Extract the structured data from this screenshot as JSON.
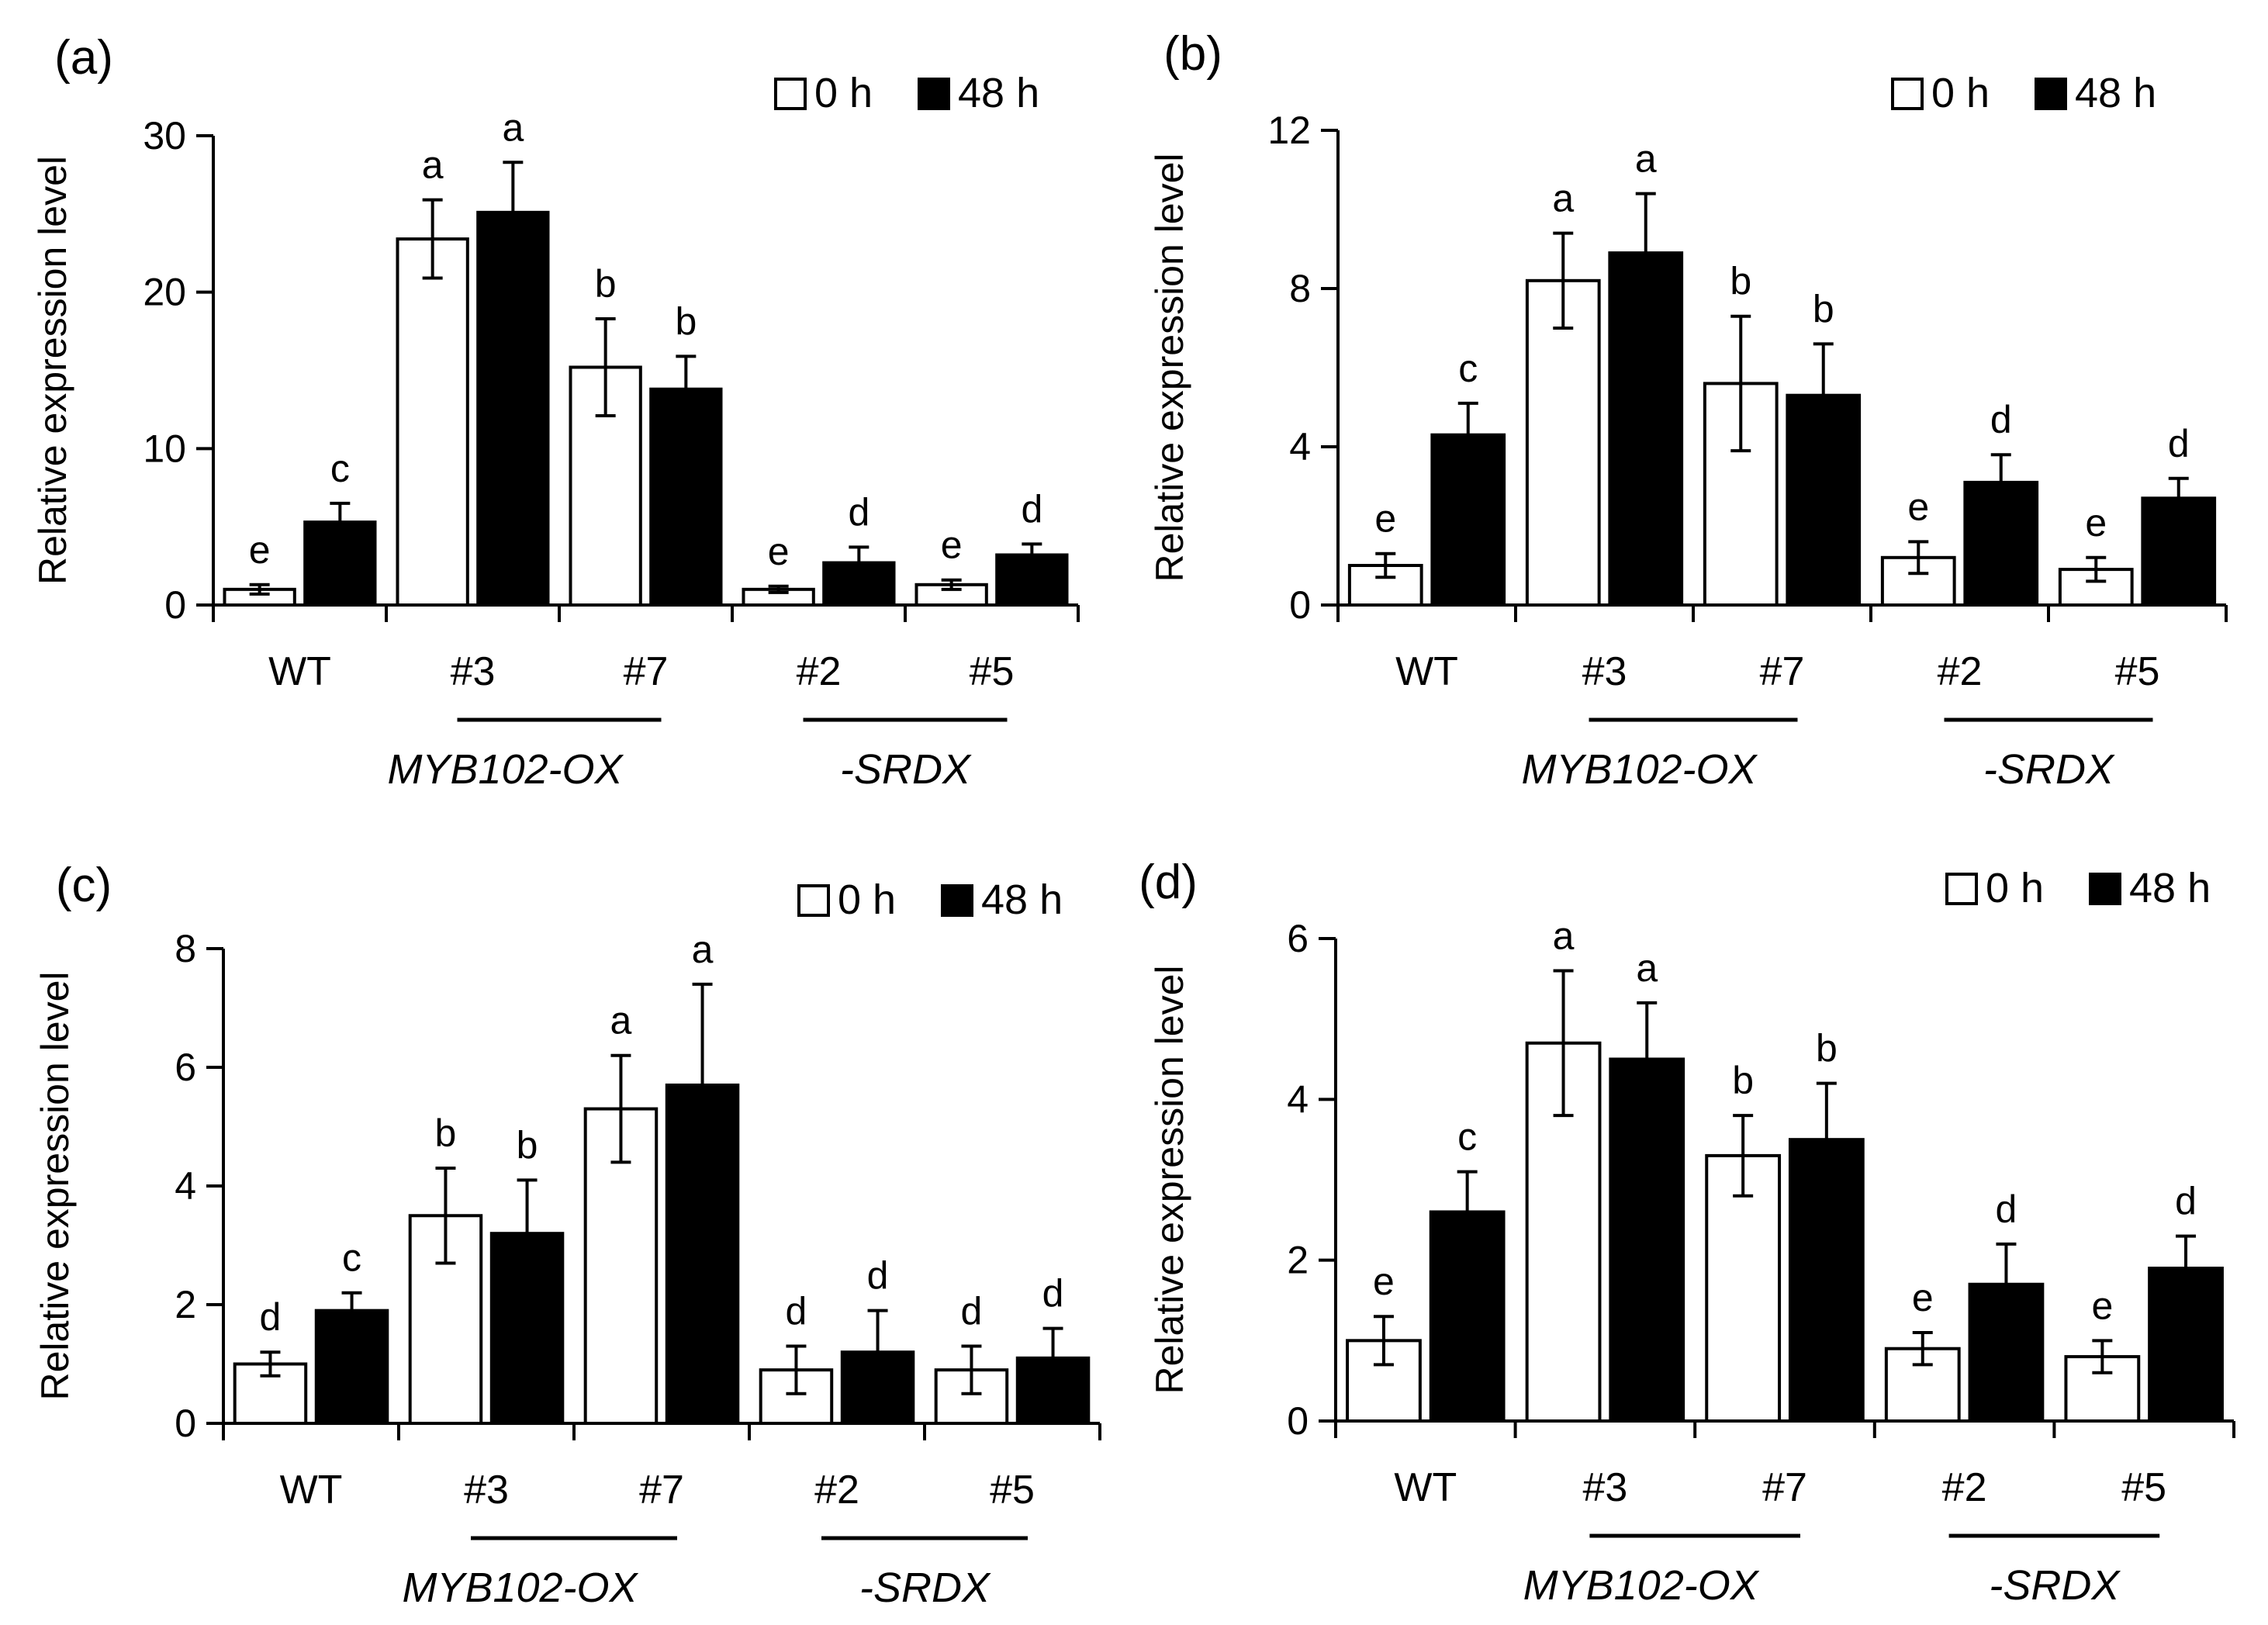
{
  "figure": {
    "colors": {
      "bar_0h": "#ffffff",
      "bar_48h": "#000000",
      "stroke": "#000000"
    }
  },
  "chart_data": [
    {
      "panel": "(a)",
      "type": "bar",
      "ylabel": "Relative expression level",
      "ylim": [
        0,
        30
      ],
      "yticks": [
        "0",
        "10",
        "20",
        "30"
      ],
      "categories": [
        "WT",
        "#3",
        "#7",
        "#2",
        "#5"
      ],
      "groups": [
        {
          "label": "MYB102-OX",
          "categories": [
            "#3",
            "#7"
          ]
        },
        {
          "label": "-SRDX",
          "categories": [
            "#2",
            "#5"
          ]
        }
      ],
      "legend": [
        "0 h",
        "48 h"
      ],
      "series": [
        {
          "name": "0 h",
          "values": [
            1.0,
            23.4,
            15.2,
            1.0,
            1.3
          ],
          "errors": [
            0.3,
            2.5,
            3.1,
            0.2,
            0.3
          ],
          "letters": [
            "e",
            "a",
            "b",
            "e",
            "e"
          ]
        },
        {
          "name": "48 h",
          "values": [
            5.3,
            25.1,
            13.8,
            2.7,
            3.2
          ],
          "errors": [
            1.2,
            3.2,
            2.1,
            1.0,
            0.7
          ],
          "letters": [
            "c",
            "a",
            "b",
            "d",
            "d"
          ]
        }
      ]
    },
    {
      "panel": "(b)",
      "type": "bar",
      "ylabel": "Relative expression level",
      "ylim": [
        0,
        12
      ],
      "yticks": [
        "0",
        "4",
        "8",
        "12"
      ],
      "categories": [
        "WT",
        "#3",
        "#7",
        "#2",
        "#5"
      ],
      "groups": [
        {
          "label": "MYB102-OX",
          "categories": [
            "#3",
            "#7"
          ]
        },
        {
          "label": "-SRDX",
          "categories": [
            "#2",
            "#5"
          ]
        }
      ],
      "legend": [
        "0 h",
        "48 h"
      ],
      "series": [
        {
          "name": "0 h",
          "values": [
            1.0,
            8.2,
            5.6,
            1.2,
            0.9
          ],
          "errors": [
            0.3,
            1.2,
            1.7,
            0.4,
            0.3
          ],
          "letters": [
            "e",
            "a",
            "b",
            "e",
            "e"
          ]
        },
        {
          "name": "48 h",
          "values": [
            4.3,
            8.9,
            5.3,
            3.1,
            2.7
          ],
          "errors": [
            0.8,
            1.5,
            1.3,
            0.7,
            0.5
          ],
          "letters": [
            "c",
            "a",
            "b",
            "d",
            "d"
          ]
        }
      ]
    },
    {
      "panel": "(c)",
      "type": "bar",
      "ylabel": "Relative expression level",
      "ylim": [
        0,
        8
      ],
      "yticks": [
        "0",
        "2",
        "4",
        "6",
        "8"
      ],
      "categories": [
        "WT",
        "#3",
        "#7",
        "#2",
        "#5"
      ],
      "groups": [
        {
          "label": "MYB102-OX",
          "categories": [
            "#3",
            "#7"
          ]
        },
        {
          "label": "-SRDX",
          "categories": [
            "#2",
            "#5"
          ]
        }
      ],
      "legend": [
        "0 h",
        "48 h"
      ],
      "series": [
        {
          "name": "0 h",
          "values": [
            1.0,
            3.5,
            5.3,
            0.9,
            0.9
          ],
          "errors": [
            0.2,
            0.8,
            0.9,
            0.4,
            0.4
          ],
          "letters": [
            "d",
            "b",
            "a",
            "d",
            "d"
          ]
        },
        {
          "name": "48 h",
          "values": [
            1.9,
            3.2,
            5.7,
            1.2,
            1.1
          ],
          "errors": [
            0.3,
            0.9,
            1.7,
            0.7,
            0.5
          ],
          "letters": [
            "c",
            "b",
            "a",
            "d",
            "d"
          ]
        }
      ]
    },
    {
      "panel": "(d)",
      "type": "bar",
      "ylabel": "Relative expression level",
      "ylim": [
        0,
        6
      ],
      "yticks": [
        "0",
        "2",
        "4",
        "6"
      ],
      "categories": [
        "WT",
        "#3",
        "#7",
        "#2",
        "#5"
      ],
      "groups": [
        {
          "label": "MYB102-OX",
          "categories": [
            "#3",
            "#7"
          ]
        },
        {
          "label": "-SRDX",
          "categories": [
            "#2",
            "#5"
          ]
        }
      ],
      "legend": [
        "0 h",
        "48 h"
      ],
      "series": [
        {
          "name": "0 h",
          "values": [
            1.0,
            4.7,
            3.3,
            0.9,
            0.8
          ],
          "errors": [
            0.3,
            0.9,
            0.5,
            0.2,
            0.2
          ],
          "letters": [
            "e",
            "a",
            "b",
            "e",
            "e"
          ]
        },
        {
          "name": "48 h",
          "values": [
            2.6,
            4.5,
            3.5,
            1.7,
            1.9
          ],
          "errors": [
            0.5,
            0.7,
            0.7,
            0.5,
            0.4
          ],
          "letters": [
            "c",
            "a",
            "b",
            "d",
            "d"
          ]
        }
      ]
    }
  ]
}
